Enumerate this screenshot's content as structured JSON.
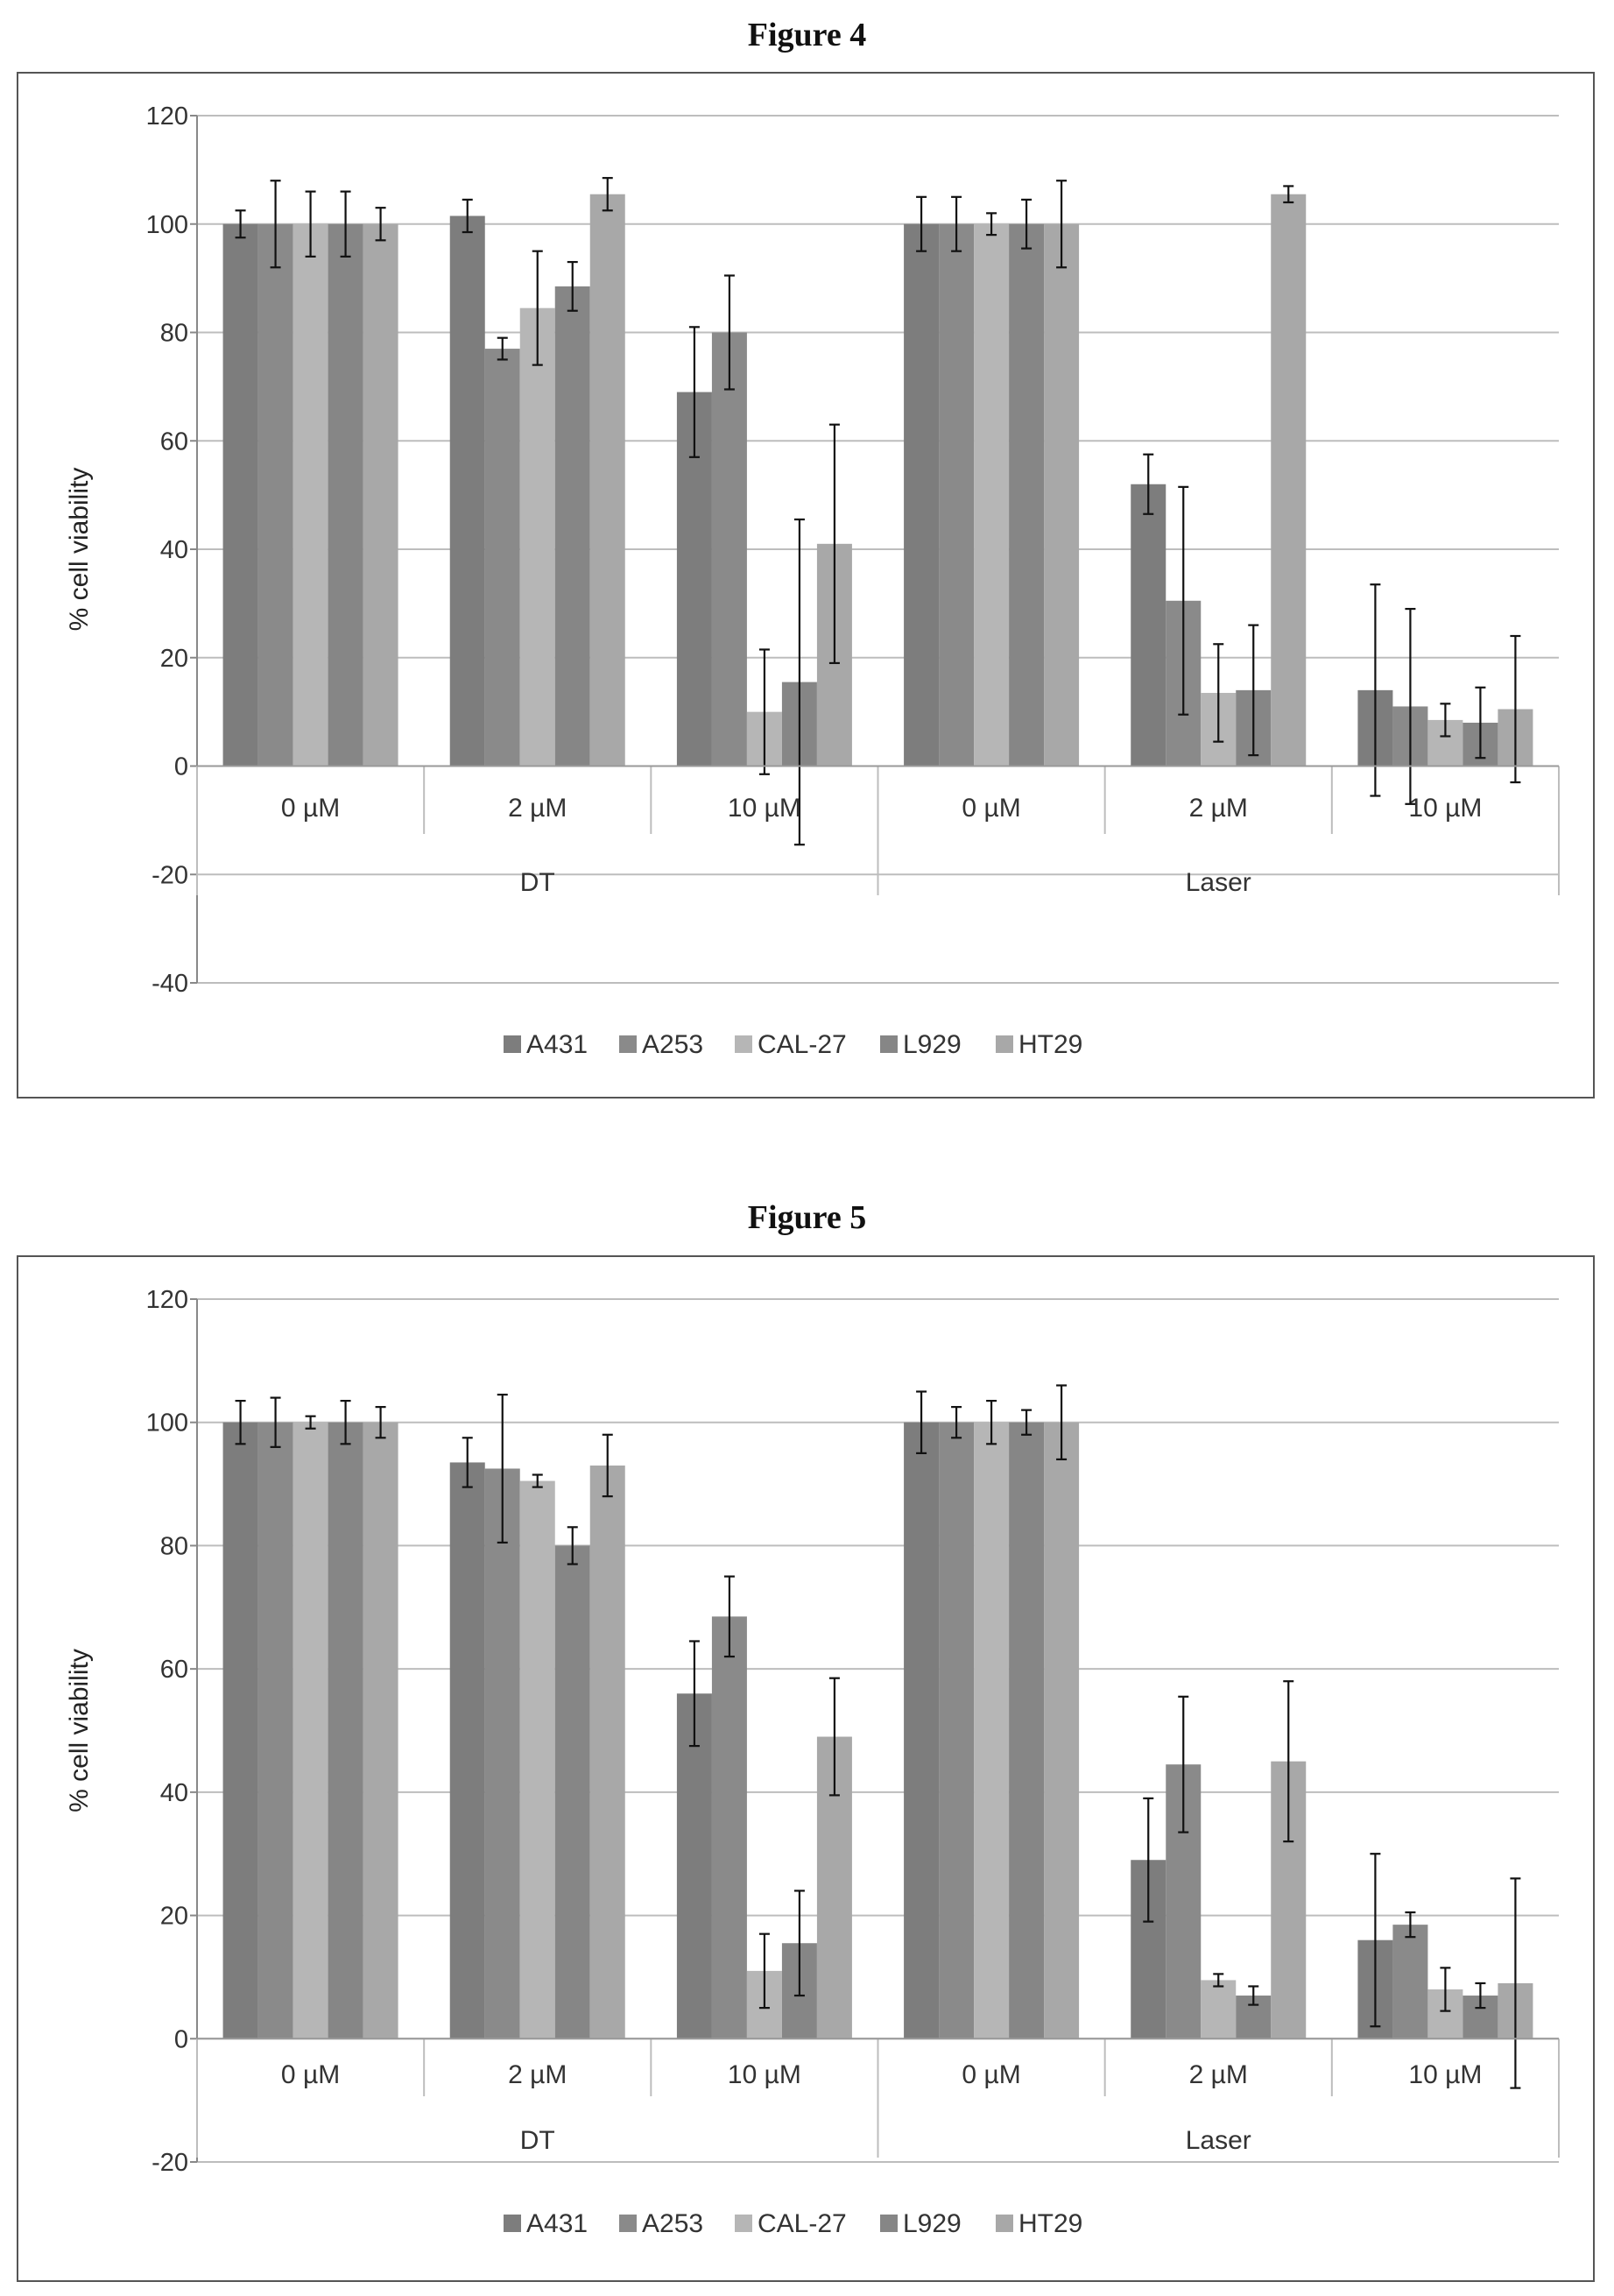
{
  "figures": [
    {
      "title": "Figure 4",
      "chart_data": {
        "type": "bar",
        "ylabel": "% cell viability",
        "ylim": [
          -40,
          120
        ],
        "yticks": [
          -40,
          -20,
          0,
          20,
          40,
          60,
          80,
          100,
          120
        ],
        "categories": [
          "0 µM",
          "2 µM",
          "10 µM",
          "0 µM",
          "2 µM",
          "10 µM"
        ],
        "groups": [
          {
            "label": "DT",
            "span": [
              0,
              2
            ]
          },
          {
            "label": "Laser",
            "span": [
              3,
              5
            ]
          }
        ],
        "grid": true,
        "legend_position": "bottom",
        "series": [
          {
            "name": "A431",
            "color": "#7d7d7d",
            "values": [
              100,
              101.5,
              69,
              100,
              52,
              14
            ],
            "errors": [
              2.5,
              3,
              12,
              5,
              5.5,
              19.5
            ]
          },
          {
            "name": "A253",
            "color": "#8a8a8a",
            "values": [
              100,
              77,
              80,
              100,
              30.5,
              11
            ],
            "errors": [
              8,
              2,
              10.5,
              5,
              21,
              18
            ]
          },
          {
            "name": "CAL-27",
            "color": "#b6b6b6",
            "values": [
              100,
              84.5,
              10,
              100,
              13.5,
              8.5
            ],
            "errors": [
              6,
              10.5,
              11.5,
              2,
              9,
              3
            ]
          },
          {
            "name": "L929",
            "color": "#868686",
            "values": [
              100,
              88.5,
              15.5,
              100,
              14,
              8
            ],
            "errors": [
              6,
              4.5,
              30,
              4.5,
              12,
              6.5
            ]
          },
          {
            "name": "HT29",
            "color": "#a8a8a8",
            "values": [
              100,
              105.5,
              41,
              100,
              105.5,
              10.5
            ],
            "errors": [
              3,
              3,
              22,
              8,
              1.5,
              13.5
            ]
          }
        ]
      }
    },
    {
      "title": "Figure 5",
      "chart_data": {
        "type": "bar",
        "ylabel": "% cell viability",
        "ylim": [
          -20,
          120
        ],
        "yticks": [
          -20,
          0,
          20,
          40,
          60,
          80,
          100,
          120
        ],
        "categories": [
          "0 µM",
          "2 µM",
          "10 µM",
          "0 µM",
          "2 µM",
          "10 µM"
        ],
        "groups": [
          {
            "label": "DT",
            "span": [
              0,
              2
            ]
          },
          {
            "label": "Laser",
            "span": [
              3,
              5
            ]
          }
        ],
        "grid": true,
        "legend_position": "bottom",
        "series": [
          {
            "name": "A431",
            "color": "#7d7d7d",
            "values": [
              100,
              93.5,
              56,
              100,
              29,
              16
            ],
            "errors": [
              3.5,
              4,
              8.5,
              5,
              10,
              14
            ]
          },
          {
            "name": "A253",
            "color": "#8a8a8a",
            "values": [
              100,
              92.5,
              68.5,
              100,
              44.5,
              18.5
            ],
            "errors": [
              4,
              12,
              6.5,
              2.5,
              11,
              2
            ]
          },
          {
            "name": "CAL-27",
            "color": "#b6b6b6",
            "values": [
              100,
              90.5,
              11,
              100,
              9.5,
              8
            ],
            "errors": [
              1,
              1,
              6,
              3.5,
              1,
              3.5
            ]
          },
          {
            "name": "L929",
            "color": "#868686",
            "values": [
              100,
              80,
              15.5,
              100,
              7,
              7
            ],
            "errors": [
              3.5,
              3,
              8.5,
              2,
              1.5,
              2
            ]
          },
          {
            "name": "HT29",
            "color": "#a8a8a8",
            "values": [
              100,
              93,
              49,
              100,
              45,
              9
            ],
            "errors": [
              2.5,
              5,
              9.5,
              6,
              13,
              17
            ]
          }
        ]
      }
    }
  ]
}
